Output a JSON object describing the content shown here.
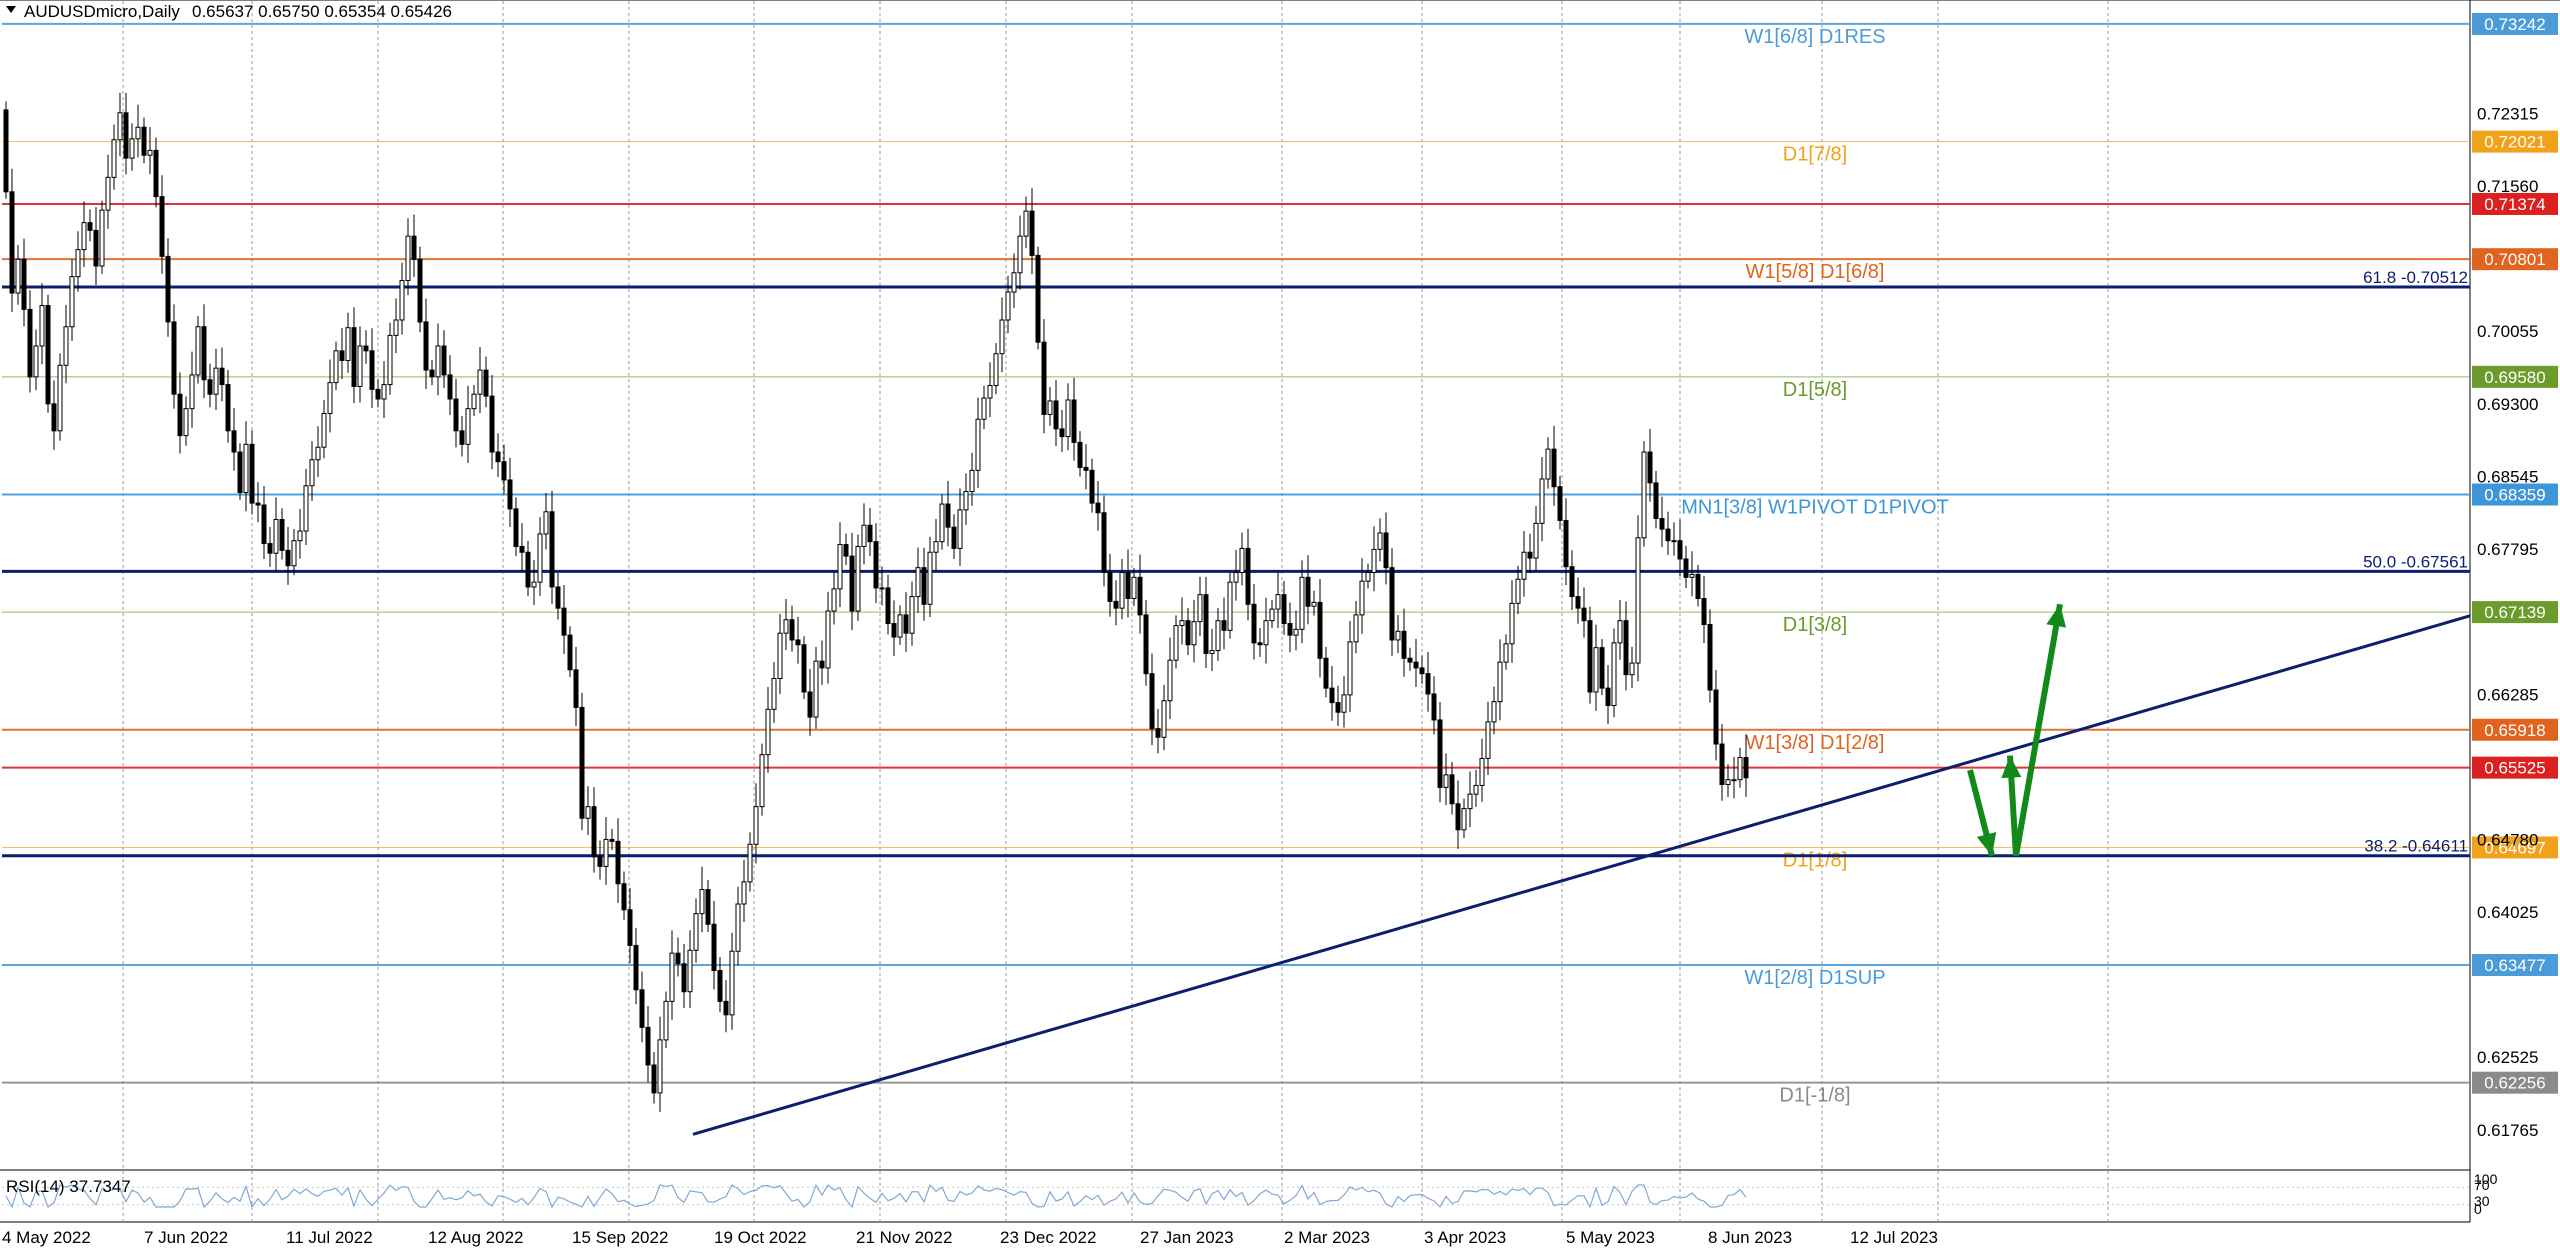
{
  "header": {
    "symbol": "AUDUSDmicro,Daily",
    "ohlc": "0.65637 0.65750 0.65354 0.65426"
  },
  "rsi": {
    "label": "RSI(14) 37.7347",
    "scale_labels": [
      "100",
      "70",
      "30",
      "0"
    ]
  },
  "colors": {
    "candle": "#000000",
    "grid": "#9a9a9a",
    "trendline": "#0b1f6e",
    "arrow": "#118a1a",
    "rsi_line": "#7fa8d8"
  },
  "chart_data": {
    "type": "candlestick",
    "symbol": "AUDUSDmicro",
    "timeframe": "Daily",
    "ylim": [
      0.6135,
      0.7348
    ],
    "price_axis_ticks": [
      "0.72315",
      "0.71560",
      "0.70055",
      "0.69300",
      "0.68545",
      "0.67795",
      "0.66285",
      "0.64780",
      "0.64025",
      "0.62525",
      "0.61765"
    ],
    "x_ticks": [
      "4 May 2022",
      "7 Jun 2022",
      "11 Jul 2022",
      "12 Aug 2022",
      "15 Sep 2022",
      "19 Oct 2022",
      "21 Nov 2022",
      "23 Dec 2022",
      "27 Jan 2023",
      "2 Mar 2023",
      "3 Apr 2023",
      "5 May 2023",
      "8 Jun 2023",
      "12 Jul 2023"
    ],
    "closes": [
      0.715,
      0.7045,
      0.708,
      0.7028,
      0.6958,
      0.699,
      0.7032,
      0.693,
      0.6902,
      0.697,
      0.701,
      0.7062,
      0.709,
      0.7118,
      0.711,
      0.7073,
      0.7131,
      0.7165,
      0.7204,
      0.7232,
      0.7185,
      0.7205,
      0.7217,
      0.7188,
      0.7193,
      0.7145,
      0.7083,
      0.7015,
      0.694,
      0.6897,
      0.6925,
      0.696,
      0.701,
      0.6955,
      0.694,
      0.6967,
      0.695,
      0.6902,
      0.688,
      0.6838,
      0.6888,
      0.6827,
      0.6825,
      0.6785,
      0.6775,
      0.681,
      0.6778,
      0.6762,
      0.6788,
      0.6798,
      0.6845,
      0.6872,
      0.6885,
      0.692,
      0.6952,
      0.6985,
      0.6975,
      0.7009,
      0.6948,
      0.699,
      0.6985,
      0.6945,
      0.6935,
      0.695,
      0.7001,
      0.7017,
      0.7058,
      0.7104,
      0.708,
      0.7015,
      0.6965,
      0.6958,
      0.699,
      0.696,
      0.6935,
      0.6902,
      0.6888,
      0.6925,
      0.694,
      0.6965,
      0.6938,
      0.688,
      0.687,
      0.6851,
      0.6821,
      0.6782,
      0.6776,
      0.674,
      0.6745,
      0.6795,
      0.6818,
      0.674,
      0.6718,
      0.669,
      0.6654,
      0.6615,
      0.65,
      0.6512,
      0.646,
      0.645,
      0.6478,
      0.6476,
      0.6432,
      0.6405,
      0.6368,
      0.6322,
      0.6283,
      0.6244,
      0.6215,
      0.627,
      0.631,
      0.636,
      0.6349,
      0.632,
      0.6363,
      0.6401,
      0.6426,
      0.639,
      0.6342,
      0.631,
      0.6296,
      0.6362,
      0.6411,
      0.6434,
      0.6473,
      0.6512,
      0.6566,
      0.6613,
      0.6645,
      0.6692,
      0.6706,
      0.6685,
      0.668,
      0.6631,
      0.6605,
      0.6663,
      0.6656,
      0.6715,
      0.6738,
      0.6784,
      0.6772,
      0.6715,
      0.6782,
      0.6804,
      0.6787,
      0.6739,
      0.6739,
      0.6702,
      0.6688,
      0.6711,
      0.6692,
      0.673,
      0.676,
      0.6722,
      0.6776,
      0.6787,
      0.6826,
      0.6802,
      0.678,
      0.682,
      0.6839,
      0.6861,
      0.6914,
      0.6936,
      0.6949,
      0.6982,
      0.7017,
      0.7046,
      0.7066,
      0.7104,
      0.713,
      0.7084,
      0.6994,
      0.6919,
      0.6933,
      0.6904,
      0.6896,
      0.6934,
      0.689,
      0.6864,
      0.6861,
      0.6827,
      0.6817,
      0.6755,
      0.6725,
      0.6718,
      0.6755,
      0.6728,
      0.675,
      0.6711,
      0.665,
      0.6593,
      0.6584,
      0.6622,
      0.6664,
      0.67,
      0.6705,
      0.668,
      0.6704,
      0.6732,
      0.6671,
      0.6674,
      0.6705,
      0.6695,
      0.6745,
      0.6755,
      0.678,
      0.6722,
      0.6682,
      0.668,
      0.6705,
      0.6717,
      0.6732,
      0.6702,
      0.669,
      0.6696,
      0.675,
      0.672,
      0.6724,
      0.6666,
      0.6635,
      0.662,
      0.661,
      0.6628,
      0.6683,
      0.6711,
      0.6746,
      0.6755,
      0.6779,
      0.6796,
      0.676,
      0.6685,
      0.6694,
      0.6666,
      0.6662,
      0.6656,
      0.665,
      0.6629,
      0.6602,
      0.6532,
      0.6545,
      0.6515,
      0.6488,
      0.651,
      0.6525,
      0.6534,
      0.6562,
      0.66,
      0.6621,
      0.6662,
      0.6681,
      0.6723,
      0.6748,
      0.6776,
      0.677,
      0.6806,
      0.6852,
      0.6883,
      0.6844,
      0.6809,
      0.6761,
      0.673,
      0.6718,
      0.6705,
      0.6631,
      0.6677,
      0.6635,
      0.6617,
      0.6682,
      0.6705,
      0.6649,
      0.6661,
      0.6791,
      0.688,
      0.6848,
      0.6811,
      0.68,
      0.6788,
      0.6788,
      0.6769,
      0.675,
      0.6753,
      0.6728,
      0.6701,
      0.6633,
      0.6577,
      0.6535,
      0.654,
      0.654,
      0.6563,
      0.6542
    ],
    "levels": [
      {
        "value": 0.73242,
        "tag": "0.73242",
        "color": "#4b9bd8",
        "label": "W1[6/8] D1RES",
        "style": "solid"
      },
      {
        "value": 0.72021,
        "tag": "0.72021",
        "color": "#f2a21a",
        "label": "D1[7/8]",
        "style": "dashed"
      },
      {
        "value": 0.71374,
        "tag": "0.71374",
        "color": "#dc1f1f",
        "label": "",
        "style": "solid"
      },
      {
        "value": 0.70801,
        "tag": "0.70801",
        "color": "#e0641e",
        "label": "W1[5/8] D1[6/8]",
        "style": "solid"
      },
      {
        "value": 0.6958,
        "tag": "0.69580",
        "color": "#6b9b2a",
        "label": "D1[5/8]",
        "style": "dashed"
      },
      {
        "value": 0.68359,
        "tag": "0.68359",
        "color": "#3d96d8",
        "label": "MN1[3/8] W1PIVOT D1PIVOT",
        "style": "solid"
      },
      {
        "value": 0.67139,
        "tag": "0.67139",
        "color": "#6b9b2a",
        "label": "D1[3/8]",
        "style": "dashed"
      },
      {
        "value": 0.65918,
        "tag": "0.65918",
        "color": "#e0641e",
        "label": "W1[3/8] D1[2/8]",
        "style": "solid"
      },
      {
        "value": 0.65525,
        "tag": "0.65525",
        "color": "#dc1f1f",
        "label": "",
        "style": "solid"
      },
      {
        "value": 0.64697,
        "tag": "0.64697",
        "color": "#f2a21a",
        "label": "D1[1/8]",
        "style": "dashed"
      },
      {
        "value": 0.63477,
        "tag": "0.63477",
        "color": "#4b9bd8",
        "label": "W1[2/8] D1SUP",
        "style": "solid"
      },
      {
        "value": 0.62256,
        "tag": "0.62256",
        "color": "#8a8a8a",
        "label": "D1[-1/8]",
        "style": "solid"
      }
    ],
    "fibonacci": [
      {
        "value": 0.70512,
        "label": "61.8 -0.70512"
      },
      {
        "value": 0.67561,
        "label": "50.0 -0.67561"
      },
      {
        "value": 0.64611,
        "label": "38.2 -0.64611"
      }
    ],
    "trendline": {
      "from_date": "10 Oct 2022",
      "from_price": 0.6172,
      "to_price_at_right_edge": 0.671
    },
    "forecast_arrows": [
      {
        "from_price": 0.655,
        "to_price": 0.6461,
        "direction": "down"
      },
      {
        "from_price": 0.6461,
        "to_price": 0.6565,
        "direction": "up"
      },
      {
        "from_price": 0.6461,
        "to_price": 0.6722,
        "direction": "up"
      }
    ],
    "rsi_value": 37.7347
  }
}
